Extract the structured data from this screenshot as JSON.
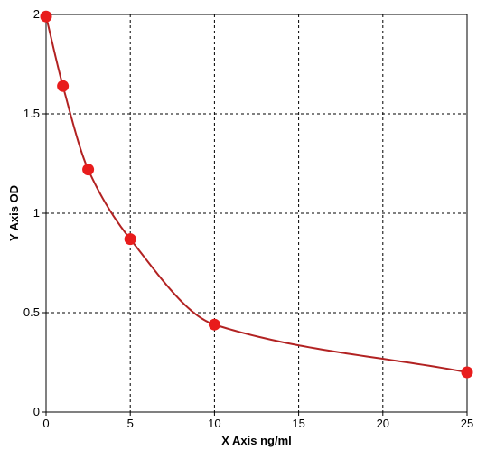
{
  "chart_data": {
    "type": "scatter",
    "title": "",
    "xlabel": "X Axis ng/ml",
    "ylabel": "Y Axis OD",
    "xlim": [
      0,
      25
    ],
    "ylim": [
      0,
      2
    ],
    "xticks": [
      0,
      5,
      10,
      15,
      20,
      25
    ],
    "yticks": [
      0,
      0.5,
      1,
      1.5,
      2
    ],
    "x_tick_labels": [
      "0",
      "5",
      "10",
      "15",
      "20",
      "25"
    ],
    "y_tick_labels": [
      "0",
      "0.5",
      "1",
      "1.5",
      "2"
    ],
    "grid": true,
    "grid_style": "dashed",
    "legend": "none",
    "series": [
      {
        "x": [
          0,
          1,
          2.5,
          5,
          10,
          25
        ],
        "y": [
          1.99,
          1.64,
          1.22,
          0.87,
          0.44,
          0.2
        ],
        "color": "#e81c1c",
        "marker": "circle",
        "fit_line": "smooth curve"
      }
    ],
    "fit_line_color": "#b22222"
  }
}
